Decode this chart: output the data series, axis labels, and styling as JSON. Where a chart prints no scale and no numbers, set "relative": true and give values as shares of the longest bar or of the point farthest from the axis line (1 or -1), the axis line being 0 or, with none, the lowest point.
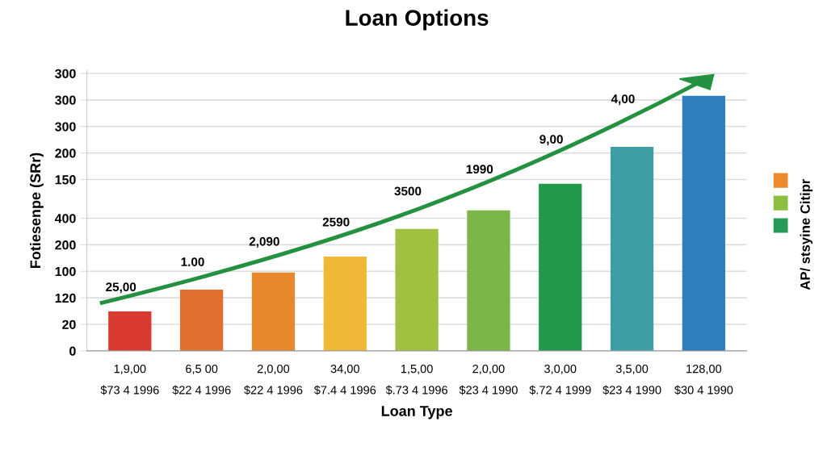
{
  "chart_data": {
    "type": "bar",
    "title": "Loan Options",
    "xlabel": "Loan Type",
    "ylabel": "Fotiesenpe (SRr)",
    "categories": [
      "1,9,00\n$73 4 1996",
      "6,5 00\n$22 4 1996",
      "2,0,00\n$22 4 1996",
      "34,00\n$7.4 4 1996",
      "1,5,00\n$.73 4 1996",
      "2,0,00\n$23 4 1990",
      "3,0,00\n$.72 4 1999",
      "3,5,00\n$23 4 1990",
      "128,00\n$30 4 1990"
    ],
    "values": [
      0.155,
      0.24,
      0.307,
      0.37,
      0.478,
      0.551,
      0.655,
      0.8,
      1.0
    ],
    "colors": [
      "#d93a2f",
      "#e16f2f",
      "#e8882d",
      "#efb935",
      "#a0c040",
      "#7ab648",
      "#239a4a",
      "#3e9ea5",
      "#2f7fbf"
    ],
    "relative": true,
    "grid": "y",
    "annotations": [
      "25,00",
      "1.00",
      "2,090",
      "2590",
      "3500",
      "1990",
      "9,00",
      "4,00",
      "300",
      "300",
      "300",
      "200",
      "150",
      "400",
      "200",
      "100",
      "120",
      "20",
      "0",
      "AP/ stsyine Citipr"
    ]
  }
}
